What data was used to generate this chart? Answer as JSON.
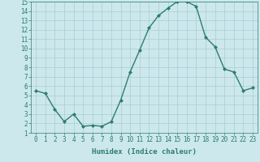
{
  "x": [
    0,
    1,
    2,
    3,
    4,
    5,
    6,
    7,
    8,
    9,
    10,
    11,
    12,
    13,
    14,
    15,
    16,
    17,
    18,
    19,
    20,
    21,
    22,
    23
  ],
  "y": [
    5.5,
    5.2,
    3.5,
    2.2,
    3.0,
    1.7,
    1.8,
    1.7,
    2.2,
    4.5,
    7.5,
    9.8,
    12.2,
    13.5,
    14.3,
    15.0,
    15.0,
    14.5,
    11.2,
    10.2,
    7.8,
    7.5,
    5.5,
    5.8
  ],
  "xlabel": "Humidex (Indice chaleur)",
  "xlim": [
    -0.5,
    23.5
  ],
  "ylim": [
    1,
    15
  ],
  "yticks": [
    1,
    2,
    3,
    4,
    5,
    6,
    7,
    8,
    9,
    10,
    11,
    12,
    13,
    14,
    15
  ],
  "xticks": [
    0,
    1,
    2,
    3,
    4,
    5,
    6,
    7,
    8,
    9,
    10,
    11,
    12,
    13,
    14,
    15,
    16,
    17,
    18,
    19,
    20,
    21,
    22,
    23
  ],
  "line_color": "#2e7d6e",
  "marker": "D",
  "marker_size": 2,
  "bg_color": "#cce8ec",
  "grid_color": "#a8cdd4",
  "xlabel_fontsize": 6.5,
  "tick_fontsize": 5.5,
  "linewidth": 1.0
}
